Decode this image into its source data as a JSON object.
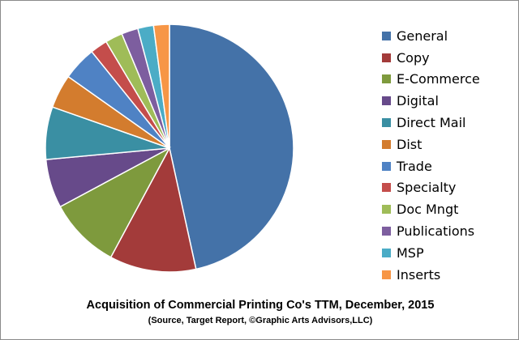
{
  "chart_data": {
    "type": "pie",
    "title": "Acquisition of Commercial Printing Co's TTM, December, 2015",
    "subtitle": "(Source, Target Report, ©Graphic Arts Advisors,LLC)",
    "legend_position": "right",
    "slices": [
      {
        "label": "General",
        "value": 47.5,
        "color": "#4472a8"
      },
      {
        "label": "Copy",
        "value": 11.5,
        "color": "#a33b3a"
      },
      {
        "label": "E-Commerce",
        "value": 9.5,
        "color": "#7e9a3d"
      },
      {
        "label": "Digital",
        "value": 6.5,
        "color": "#674a8a"
      },
      {
        "label": "Direct Mail",
        "value": 7.0,
        "color": "#3a8fa3"
      },
      {
        "label": "Dist",
        "value": 4.5,
        "color": "#d37c2e"
      },
      {
        "label": "Trade",
        "value": 4.5,
        "color": "#4f82c4"
      },
      {
        "label": "Specialty",
        "value": 2.3,
        "color": "#c44d4b"
      },
      {
        "label": "Doc Mngt",
        "value": 2.3,
        "color": "#9fbc58"
      },
      {
        "label": "Publications",
        "value": 2.2,
        "color": "#7d5e9f"
      },
      {
        "label": "MSP",
        "value": 2.1,
        "color": "#4bacc6"
      },
      {
        "label": "Inserts",
        "value": 2.1,
        "color": "#f79646"
      }
    ]
  }
}
